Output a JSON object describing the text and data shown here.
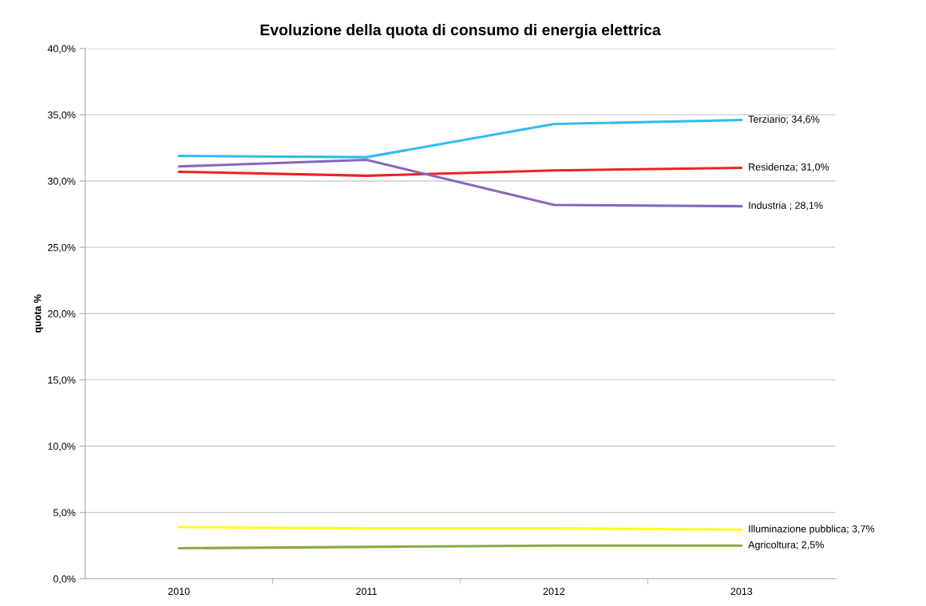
{
  "chart_data": {
    "type": "line",
    "title": "Evoluzione della quota di consumo di energia elettrica",
    "ylabel": "quota %",
    "categories": [
      "2010",
      "2011",
      "2012",
      "2013"
    ],
    "series": [
      {
        "color": "#33bbee",
        "values": [
          31.9,
          31.8,
          34.3,
          34.6
        ],
        "value_labels": [
          null,
          null,
          null,
          "Terziario; 34,6%"
        ]
      },
      {
        "color": "#ee2222",
        "values": [
          30.7,
          30.4,
          30.8,
          31.0
        ],
        "value_labels": [
          null,
          null,
          null,
          "Residenza; 31,0%"
        ]
      },
      {
        "color": "#8866bb",
        "values": [
          31.1,
          31.6,
          28.2,
          28.1
        ],
        "value_labels": [
          null,
          null,
          null,
          "Industria ; 28,1%"
        ]
      },
      {
        "color": "#ffff22",
        "values": [
          3.9,
          3.8,
          3.8,
          3.7
        ],
        "value_labels": [
          null,
          null,
          null,
          "Illuminazione pubblica; 3,7%"
        ]
      },
      {
        "color": "#88aa44",
        "values": [
          2.3,
          2.4,
          2.5,
          2.5
        ],
        "value_labels": [
          null,
          null,
          null,
          "Agricoltura; 2,5%"
        ]
      }
    ],
    "ylim": [
      0,
      40
    ],
    "yticks": [
      {
        "value": 0,
        "label": "0,0%"
      },
      {
        "value": 5,
        "label": "5,0%"
      },
      {
        "value": 10,
        "label": "10,0%"
      },
      {
        "value": 15,
        "label": "15,0%"
      },
      {
        "value": 20,
        "label": "20,0%"
      },
      {
        "value": 25,
        "label": "25,0%"
      },
      {
        "value": 30,
        "label": "30,0%"
      },
      {
        "value": 35,
        "label": "35,0%"
      },
      {
        "value": 40,
        "label": "40,0%"
      }
    ],
    "grid": "y",
    "legend": false,
    "marker": "none",
    "line_style": "solid"
  }
}
